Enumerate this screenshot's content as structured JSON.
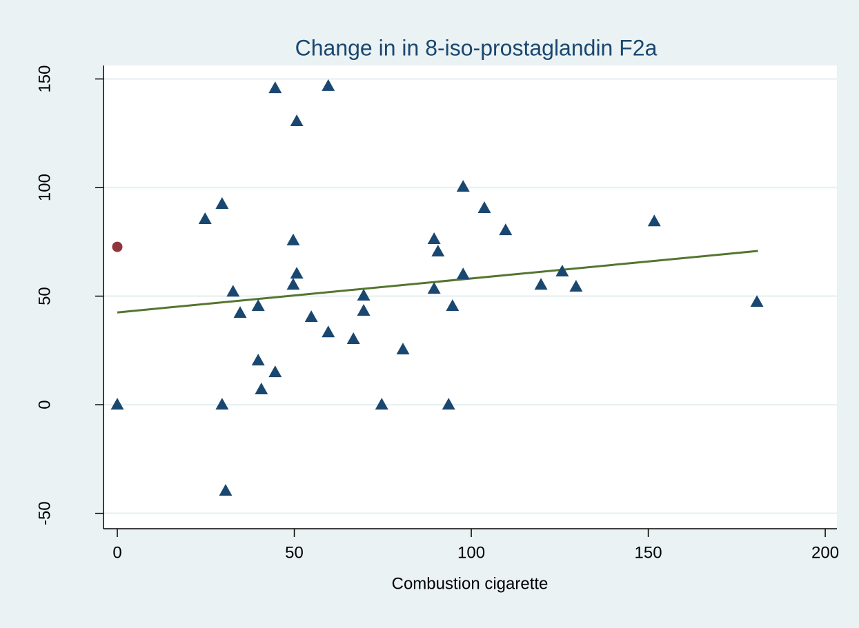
{
  "chart_data": {
    "type": "scatter",
    "title": "Change in in 8-iso-prostaglandin F2a",
    "x_label": "Combustion cigarette",
    "xlim": [
      -3.9,
      203.3
    ],
    "xticks": [
      0,
      50,
      100,
      150,
      200
    ],
    "ylim": [
      -57.1,
      156.2
    ],
    "yticks": [
      -50,
      0,
      50,
      100,
      150
    ],
    "grid": true,
    "series": [
      {
        "type": "scatter",
        "marker": "triangle",
        "color": "#1a476f",
        "x": [
          0,
          24.8,
          29.6,
          29.6,
          30.6,
          32.7,
          34.7,
          39.8,
          39.8,
          40.7,
          44.6,
          44.6,
          49.7,
          49.7,
          50.7,
          50.7,
          54.8,
          59.6,
          59.6,
          66.7,
          69.6,
          69.6,
          74.7,
          80.7,
          89.5,
          90.6,
          89.5,
          93.6,
          94.7,
          97.7,
          97.7,
          103.7,
          109.7,
          119.7,
          125.7,
          129.6,
          151.7,
          180.7
        ],
        "values": [
          0,
          85.4,
          92.4,
          0,
          -39.7,
          52,
          42.2,
          45.4,
          20.3,
          7,
          14.9,
          145.7,
          75.6,
          55.2,
          60.3,
          130.5,
          40.3,
          146.7,
          33.3,
          30.2,
          50.2,
          43.2,
          0,
          25.4,
          76.2,
          70.5,
          53.3,
          0,
          45.4,
          100.3,
          60,
          90.5,
          80.3,
          55.2,
          61.3,
          54.3,
          84.4,
          47.3
        ]
      },
      {
        "type": "scatter",
        "marker": "circle",
        "color": "#90353b",
        "x": [
          0
        ],
        "values": [
          72.7
        ]
      },
      {
        "type": "line",
        "color": "#55752f",
        "x": [
          0,
          181
        ],
        "values": [
          42.5,
          70.8
        ]
      }
    ]
  }
}
